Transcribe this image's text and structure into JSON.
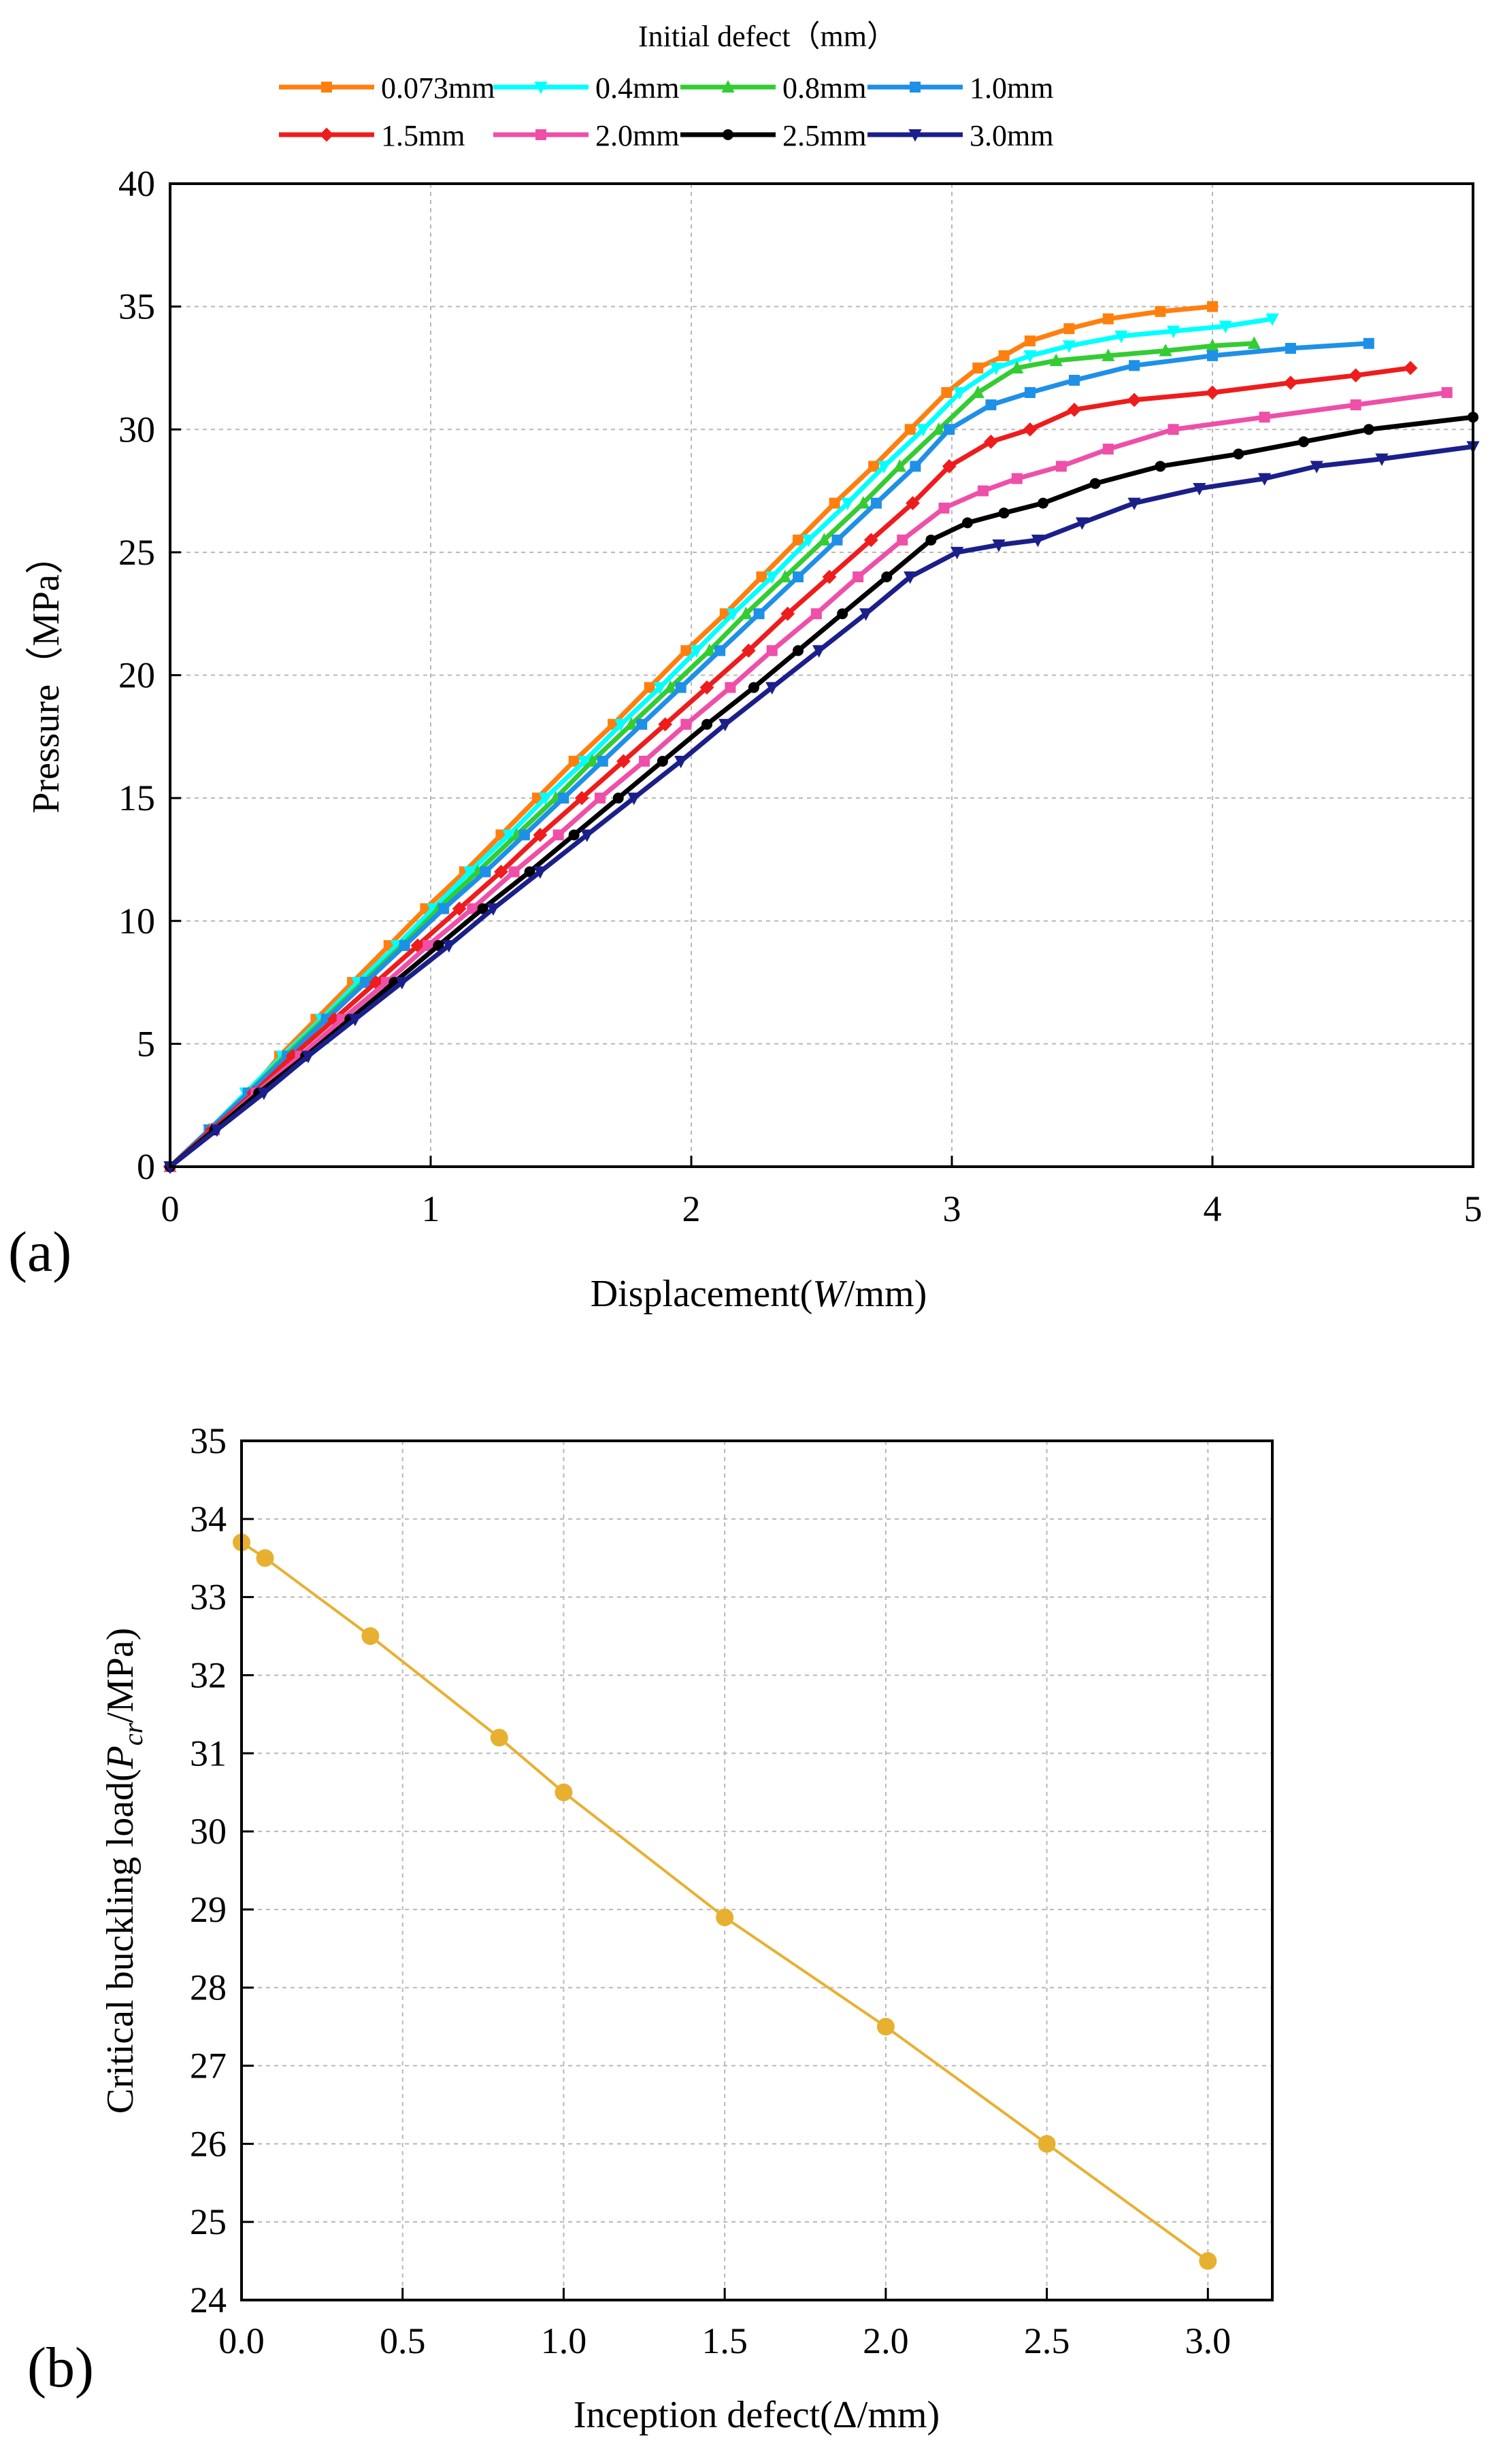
{
  "panels": {
    "a_label": "(a)",
    "b_label": "(b)"
  },
  "chart_data": [
    {
      "type": "line",
      "title": "",
      "legend_title": "Initial defect（mm）",
      "legend_placement": "top",
      "xlabel": {
        "prefix": "Displacement(",
        "italic": "W",
        "suffix": "/mm)"
      },
      "ylabel": "Pressure（MPa）",
      "xlim": [
        0,
        5
      ],
      "ylim": [
        0,
        40
      ],
      "xticks": [
        "0",
        "1",
        "2",
        "3",
        "4",
        "5"
      ],
      "yticks": [
        "0",
        "5",
        "10",
        "15",
        "20",
        "25",
        "30",
        "35",
        "40"
      ],
      "grid": true,
      "series": [
        {
          "name": "0.073mm",
          "color": "#ff7f0e",
          "marker": "square",
          "x": [
            0,
            0.15,
            0.3,
            0.42,
            0.56,
            0.7,
            0.84,
            0.98,
            1.13,
            1.27,
            1.41,
            1.55,
            1.7,
            1.84,
            1.98,
            2.13,
            2.27,
            2.41,
            2.55,
            2.7,
            2.84,
            2.98,
            3.1,
            3.2,
            3.3,
            3.45,
            3.6,
            3.8,
            4.0
          ],
          "y": [
            0,
            1.5,
            3.0,
            4.5,
            6.0,
            7.5,
            9.0,
            10.5,
            12.0,
            13.5,
            15.0,
            16.5,
            18.0,
            19.5,
            21.0,
            22.5,
            24.0,
            25.5,
            27.0,
            28.5,
            30.0,
            31.5,
            32.5,
            33.0,
            33.6,
            34.1,
            34.5,
            34.8,
            35.0
          ]
        },
        {
          "name": "0.4mm",
          "color": "#00ffff",
          "marker": "triangle-down",
          "x": [
            0,
            0.15,
            0.29,
            0.43,
            0.58,
            0.72,
            0.87,
            1.01,
            1.15,
            1.3,
            1.44,
            1.59,
            1.73,
            1.88,
            2.02,
            2.16,
            2.31,
            2.45,
            2.6,
            2.74,
            2.89,
            3.03,
            3.17,
            3.3,
            3.45,
            3.65,
            3.85,
            4.05,
            4.23
          ],
          "y": [
            0,
            1.5,
            3.0,
            4.5,
            6.0,
            7.5,
            9.0,
            10.5,
            12.0,
            13.5,
            15.0,
            16.5,
            18.0,
            19.5,
            21.0,
            22.5,
            24.0,
            25.5,
            27.0,
            28.5,
            30.0,
            31.5,
            32.5,
            33.0,
            33.4,
            33.8,
            34.0,
            34.2,
            34.5
          ]
        },
        {
          "name": "0.8mm",
          "color": "#33cc33",
          "marker": "triangle-up",
          "x": [
            0,
            0.15,
            0.3,
            0.44,
            0.59,
            0.74,
            0.89,
            1.03,
            1.18,
            1.33,
            1.48,
            1.62,
            1.77,
            1.92,
            2.07,
            2.21,
            2.36,
            2.51,
            2.66,
            2.8,
            2.95,
            3.1,
            3.25,
            3.4,
            3.6,
            3.82,
            4.0,
            4.16
          ],
          "y": [
            0,
            1.5,
            3.0,
            4.5,
            6.0,
            7.5,
            9.0,
            10.5,
            12.0,
            13.5,
            15.0,
            16.5,
            18.0,
            19.5,
            21.0,
            22.5,
            24.0,
            25.5,
            27.0,
            28.5,
            30.0,
            31.5,
            32.5,
            32.8,
            33.0,
            33.2,
            33.4,
            33.5
          ]
        },
        {
          "name": "1.0mm",
          "color": "#1e90e8",
          "marker": "square",
          "x": [
            0,
            0.15,
            0.3,
            0.45,
            0.6,
            0.75,
            0.9,
            1.05,
            1.21,
            1.36,
            1.51,
            1.66,
            1.81,
            1.96,
            2.11,
            2.26,
            2.41,
            2.56,
            2.71,
            2.86,
            2.99,
            3.15,
            3.3,
            3.47,
            3.7,
            4.0,
            4.3,
            4.6
          ],
          "y": [
            0,
            1.5,
            3.0,
            4.5,
            6.0,
            7.5,
            9.0,
            10.5,
            12.0,
            13.5,
            15.0,
            16.5,
            18.0,
            19.5,
            21.0,
            22.5,
            24.0,
            25.5,
            27.0,
            28.5,
            30.0,
            31.0,
            31.5,
            32.0,
            32.6,
            33.0,
            33.3,
            33.5
          ]
        },
        {
          "name": "1.5mm",
          "color": "#ee1c1c",
          "marker": "diamond",
          "x": [
            0,
            0.16,
            0.32,
            0.47,
            0.63,
            0.79,
            0.95,
            1.11,
            1.27,
            1.42,
            1.58,
            1.74,
            1.9,
            2.06,
            2.22,
            2.37,
            2.53,
            2.69,
            2.85,
            2.99,
            3.15,
            3.3,
            3.47,
            3.7,
            4.0,
            4.3,
            4.55,
            4.76
          ],
          "y": [
            0,
            1.5,
            3.0,
            4.5,
            6.0,
            7.5,
            9.0,
            10.5,
            12.0,
            13.5,
            15.0,
            16.5,
            18.0,
            19.5,
            21.0,
            22.5,
            24.0,
            25.5,
            27.0,
            28.5,
            29.5,
            30.0,
            30.8,
            31.2,
            31.5,
            31.9,
            32.2,
            32.5
          ]
        },
        {
          "name": "2.0mm",
          "color": "#ee4fa8",
          "marker": "square",
          "x": [
            0,
            0.17,
            0.33,
            0.5,
            0.66,
            0.83,
            0.99,
            1.16,
            1.32,
            1.49,
            1.65,
            1.82,
            1.98,
            2.15,
            2.31,
            2.48,
            2.64,
            2.81,
            2.97,
            3.12,
            3.25,
            3.42,
            3.6,
            3.85,
            4.2,
            4.55,
            4.9
          ],
          "y": [
            0,
            1.5,
            3.0,
            4.5,
            6.0,
            7.5,
            9.0,
            10.5,
            12.0,
            13.5,
            15.0,
            16.5,
            18.0,
            19.5,
            21.0,
            22.5,
            24.0,
            25.5,
            26.8,
            27.5,
            28.0,
            28.5,
            29.2,
            30.0,
            30.5,
            31.0,
            31.5
          ]
        },
        {
          "name": "2.5mm",
          "color": "#000000",
          "marker": "circle",
          "x": [
            0,
            0.17,
            0.34,
            0.52,
            0.69,
            0.86,
            1.03,
            1.2,
            1.38,
            1.55,
            1.72,
            1.89,
            2.06,
            2.24,
            2.41,
            2.58,
            2.75,
            2.92,
            3.06,
            3.2,
            3.35,
            3.55,
            3.8,
            4.1,
            4.35,
            4.6,
            5.0
          ],
          "y": [
            0,
            1.5,
            3.0,
            4.5,
            6.0,
            7.5,
            9.0,
            10.5,
            12.0,
            13.5,
            15.0,
            16.5,
            18.0,
            19.5,
            21.0,
            22.5,
            24.0,
            25.5,
            26.2,
            26.6,
            27.0,
            27.8,
            28.5,
            29.0,
            29.5,
            30.0,
            30.5
          ]
        },
        {
          "name": "3.0mm",
          "color": "#1b1f8a",
          "marker": "triangle-down",
          "x": [
            0,
            0.18,
            0.36,
            0.53,
            0.71,
            0.89,
            1.07,
            1.24,
            1.42,
            1.6,
            1.78,
            1.96,
            2.13,
            2.31,
            2.49,
            2.67,
            2.84,
            3.02,
            3.18,
            3.33,
            3.5,
            3.7,
            3.95,
            4.2,
            4.4,
            4.65,
            5.0
          ],
          "y": [
            0,
            1.5,
            3.0,
            4.5,
            6.0,
            7.5,
            9.0,
            10.5,
            12.0,
            13.5,
            15.0,
            16.5,
            18.0,
            19.5,
            21.0,
            22.5,
            24.0,
            25.0,
            25.3,
            25.5,
            26.2,
            27.0,
            27.6,
            28.0,
            28.5,
            28.8,
            29.3
          ]
        }
      ]
    },
    {
      "type": "line",
      "title": "",
      "xlabel": {
        "prefix": "Inception defect(",
        "symbol": "Δ",
        "suffix": "/mm)"
      },
      "ylabel": {
        "prefix": "Critical buckling load(",
        "italic": "P",
        "sub": "cr",
        "suffix": "/MPa)"
      },
      "xlim": [
        0,
        3.2
      ],
      "ylim": [
        24,
        35
      ],
      "xticks": [
        "0.0",
        "0.5",
        "1.0",
        "1.5",
        "2.0",
        "2.5",
        "3.0"
      ],
      "yticks": [
        "24",
        "25",
        "26",
        "27",
        "28",
        "29",
        "30",
        "31",
        "32",
        "33",
        "34",
        "35"
      ],
      "grid": true,
      "series": [
        {
          "color": "#e8b030",
          "marker": "circle",
          "x": [
            0.0,
            0.073,
            0.4,
            0.8,
            1.0,
            1.5,
            2.0,
            2.5,
            3.0
          ],
          "y": [
            33.7,
            33.5,
            32.5,
            31.2,
            30.5,
            28.9,
            27.5,
            26.0,
            24.5
          ]
        }
      ]
    }
  ]
}
